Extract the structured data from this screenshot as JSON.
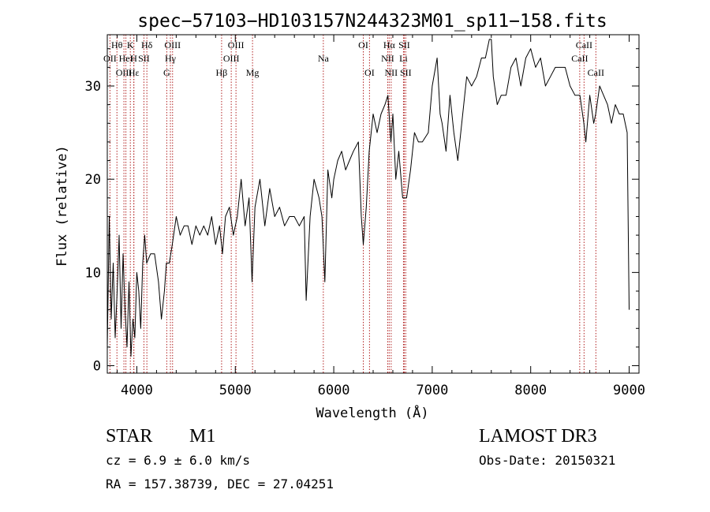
{
  "chart_data": {
    "type": "line",
    "title": "spec−57103−HD103157N244323M01_sp11−158.fits",
    "xlabel": "Wavelength (Å)",
    "ylabel": "Flux (relative)",
    "xlim": [
      3700,
      9100
    ],
    "ylim": [
      -0.8,
      35.5
    ],
    "xticks": [
      4000,
      5000,
      6000,
      7000,
      8000,
      9000
    ],
    "yticks": [
      0,
      10,
      20,
      30
    ],
    "xminor_step": 200,
    "yminor_step": 2,
    "series": [
      {
        "name": "spectrum",
        "x": [
          3700,
          3720,
          3740,
          3760,
          3780,
          3800,
          3820,
          3840,
          3860,
          3880,
          3900,
          3920,
          3940,
          3960,
          3980,
          4000,
          4020,
          4040,
          4060,
          4080,
          4100,
          4140,
          4180,
          4220,
          4250,
          4280,
          4300,
          4330,
          4360,
          4400,
          4440,
          4480,
          4520,
          4560,
          4600,
          4640,
          4680,
          4720,
          4760,
          4800,
          4840,
          4870,
          4900,
          4940,
          4980,
          5020,
          5060,
          5100,
          5140,
          5170,
          5200,
          5250,
          5300,
          5350,
          5400,
          5450,
          5500,
          5550,
          5600,
          5650,
          5700,
          5720,
          5760,
          5800,
          5850,
          5880,
          5910,
          5940,
          5980,
          6000,
          6040,
          6080,
          6120,
          6160,
          6200,
          6250,
          6280,
          6300,
          6330,
          6360,
          6400,
          6440,
          6480,
          6520,
          6550,
          6580,
          6600,
          6630,
          6660,
          6700,
          6740,
          6780,
          6820,
          6860,
          6900,
          6960,
          7000,
          7050,
          7080,
          7100,
          7140,
          7180,
          7220,
          7260,
          7300,
          7350,
          7400,
          7450,
          7500,
          7540,
          7580,
          7600,
          7620,
          7660,
          7700,
          7750,
          7800,
          7850,
          7900,
          7950,
          8000,
          8050,
          8100,
          8150,
          8200,
          8250,
          8300,
          8350,
          8400,
          8450,
          8500,
          8540,
          8560,
          8600,
          8640,
          8660,
          8700,
          8740,
          8780,
          8820,
          8860,
          8900,
          8940,
          8980,
          9000
        ],
        "values": [
          2,
          16,
          5,
          11,
          3,
          8,
          14,
          4,
          12,
          6,
          2,
          9,
          1,
          5,
          3,
          10,
          8,
          4,
          11,
          14,
          11,
          12,
          12,
          9,
          5,
          8,
          11,
          11,
          13,
          16,
          14,
          15,
          15,
          13,
          15,
          14,
          15,
          14,
          16,
          13,
          15,
          12,
          16,
          17,
          14,
          16,
          20,
          15,
          18,
          9,
          17,
          20,
          15,
          19,
          16,
          17,
          15,
          16,
          16,
          15,
          16,
          7,
          16,
          20,
          18,
          16,
          9,
          21,
          18,
          20,
          22,
          23,
          21,
          22,
          23,
          24,
          16,
          13,
          17,
          23,
          27,
          25,
          27,
          28,
          29,
          24,
          27,
          20,
          23,
          18,
          18,
          21,
          25,
          24,
          24,
          25,
          30,
          33,
          27,
          26,
          23,
          29,
          25,
          22,
          26,
          31,
          30,
          31,
          33,
          33,
          35,
          35,
          31,
          28,
          29,
          29,
          32,
          33,
          30,
          33,
          34,
          32,
          33,
          30,
          31,
          32,
          32,
          32,
          30,
          29,
          29,
          26,
          24,
          29,
          26,
          27,
          30,
          29,
          28,
          26,
          28,
          27,
          27,
          25,
          6
        ]
      }
    ],
    "lines": [
      {
        "name": "Hθ",
        "wave": 3798,
        "row": 0
      },
      {
        "name": "OII",
        "wave": 3727,
        "row": 1
      },
      {
        "name": "OIII",
        "wave": 3869,
        "row": 2
      },
      {
        "name": "Hε",
        "wave": 3970,
        "row": 2
      },
      {
        "name": "HeI",
        "wave": 3889,
        "row": 1
      },
      {
        "name": "K",
        "wave": 3934,
        "row": 0
      },
      {
        "name": "H",
        "wave": 3969,
        "row": 1
      },
      {
        "name": "SII",
        "wave": 4072,
        "row": 1
      },
      {
        "name": "Hδ",
        "wave": 4102,
        "row": 0
      },
      {
        "name": "G",
        "wave": 4304,
        "row": 2
      },
      {
        "name": "Hγ",
        "wave": 4341,
        "row": 1
      },
      {
        "name": "OIII",
        "wave": 4363,
        "row": 0
      },
      {
        "name": "Hβ",
        "wave": 4861,
        "row": 2
      },
      {
        "name": "OIII",
        "wave": 4959,
        "row": 1
      },
      {
        "name": "OIII",
        "wave": 5007,
        "row": 0
      },
      {
        "name": "Mg",
        "wave": 5175,
        "row": 2
      },
      {
        "name": "Na",
        "wave": 5894,
        "row": 1
      },
      {
        "name": "OI",
        "wave": 6300,
        "row": 0
      },
      {
        "name": "OI",
        "wave": 6363,
        "row": 2
      },
      {
        "name": "NII",
        "wave": 6548,
        "row": 1
      },
      {
        "name": "Hα",
        "wave": 6563,
        "row": 0
      },
      {
        "name": "NII",
        "wave": 6583,
        "row": 2
      },
      {
        "name": "Li",
        "wave": 6708,
        "row": 1
      },
      {
        "name": "SII",
        "wave": 6716,
        "row": 0
      },
      {
        "name": "SII",
        "wave": 6731,
        "row": 2
      },
      {
        "name": "CaII",
        "wave": 8498,
        "row": 1
      },
      {
        "name": "CaII",
        "wave": 8542,
        "row": 0
      },
      {
        "name": "CaII",
        "wave": 8662,
        "row": 2
      }
    ],
    "line_color": "#b22222"
  },
  "info": {
    "class_label": "STAR",
    "subclass": "M1",
    "survey": "LAMOST DR3",
    "cz": "cz = 6.9 ± 6.0 km/s",
    "obs_date": "Obs-Date: 20150321",
    "radec": "RA = 157.38739, DEC =  27.04251"
  }
}
